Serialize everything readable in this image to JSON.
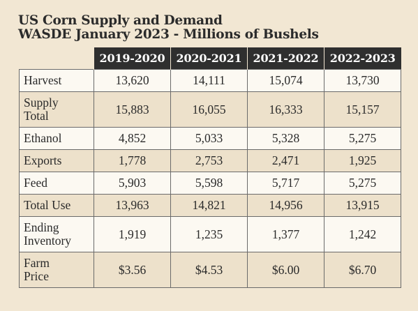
{
  "title_line1": "US Corn Supply and Demand",
  "title_line2": "WASDE January 2023 - Millions of Bushels",
  "chart_data": {
    "type": "table",
    "title": "US Corn Supply and Demand",
    "subtitle": "WASDE January 2023 - Millions of Bushels",
    "columns": [
      "2019-2020",
      "2020-2021",
      "2021-2022",
      "2022-2023"
    ],
    "rows": [
      {
        "label": "Harvest",
        "values": [
          "13,620",
          "14,111",
          "15,074",
          "13,730"
        ]
      },
      {
        "label": "Supply Total",
        "values": [
          "15,883",
          "16,055",
          "16,333",
          "15,157"
        ]
      },
      {
        "label": "Ethanol",
        "values": [
          "4,852",
          "5,033",
          "5,328",
          "5,275"
        ]
      },
      {
        "label": "Exports",
        "values": [
          "1,778",
          "2,753",
          "2,471",
          "1,925"
        ]
      },
      {
        "label": "Feed",
        "values": [
          "5,903",
          "5,598",
          "5,717",
          "5,275"
        ]
      },
      {
        "label": "Total Use",
        "values": [
          "13,963",
          "14,821",
          "14,956",
          "13,915"
        ]
      },
      {
        "label": "Ending Inventory",
        "values": [
          "1,919",
          "1,235",
          "1,377",
          "1,242"
        ]
      },
      {
        "label": "Farm Price",
        "values": [
          "$3.56",
          "$4.53",
          "$6.00",
          "$6.70"
        ]
      }
    ]
  },
  "colors": {
    "background": "#f2e7d3",
    "header_fill": "#2f2f2f",
    "header_text": "#ffffff",
    "row_light": "#fcf9f2",
    "row_dark": "#ede1cb",
    "grid_line": "#6a6a6a"
  }
}
